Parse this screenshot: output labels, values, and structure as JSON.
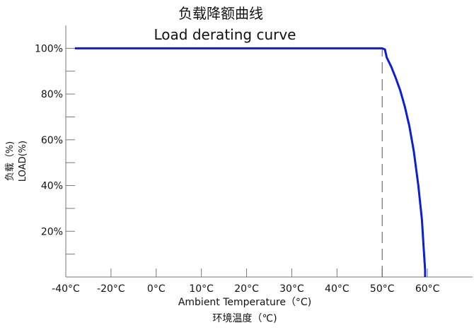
{
  "chart_data": {
    "type": "line",
    "title": "负载降额曲线",
    "subtitle": "Load derating curve",
    "xlabel": "Ambient Temperature（°C)",
    "xlabel_secondary": "环境温度（℃)",
    "ylabel": "LOAD(%)",
    "ylabel_secondary": "负载（%)",
    "x_ticks": [
      "-40°C",
      "-20°C",
      "0°C",
      "10°C",
      "20°C",
      "30°C",
      "40°C",
      "50°C",
      "60°C"
    ],
    "x_tick_values": [
      -50,
      -40,
      -30,
      -20,
      -10,
      0,
      10,
      20,
      30
    ],
    "y_ticks": [
      "20%",
      "40%",
      "60%",
      "80%",
      "100%"
    ],
    "y_tick_values": [
      20,
      40,
      60,
      80,
      100
    ],
    "xlim": [
      -50,
      40
    ],
    "ylim": [
      0,
      110
    ],
    "grid": false,
    "series": [
      {
        "color": "#0b1fd6",
        "x": [
          -48,
          20,
          20.6,
          21,
          22,
          23,
          24,
          25,
          26,
          27,
          28,
          28.8,
          29.2,
          29.5,
          29.5
        ],
        "values": [
          100,
          100,
          99.5,
          96,
          92,
          87,
          81.5,
          74.5,
          66,
          55,
          40,
          25,
          12,
          3,
          0
        ]
      }
    ],
    "annotations": [
      {
        "type": "dashed-vertical-line",
        "x": 20,
        "y_from": 0,
        "y_to": 100
      }
    ]
  }
}
